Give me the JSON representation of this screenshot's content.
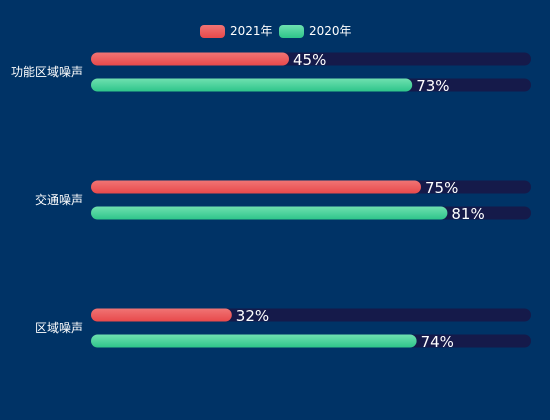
{
  "chart_data": {
    "type": "bar",
    "orientation": "horizontal",
    "categories": [
      "功能区域噪声",
      "交通噪声",
      "区域噪声"
    ],
    "series": [
      {
        "name": "2021年",
        "values": [
          45,
          75,
          32
        ],
        "color": "#e8494b",
        "color_light": "#f07474"
      },
      {
        "name": "2020年",
        "values": [
          73,
          81,
          74
        ],
        "color": "#2ec58a",
        "color_light": "#6fe0b0"
      }
    ],
    "value_suffix": "%",
    "xlim": [
      0,
      100
    ],
    "track_color": "#151a4a",
    "legend_position": "top-center",
    "grid": false,
    "title": "",
    "xlabel": "",
    "ylabel": ""
  }
}
